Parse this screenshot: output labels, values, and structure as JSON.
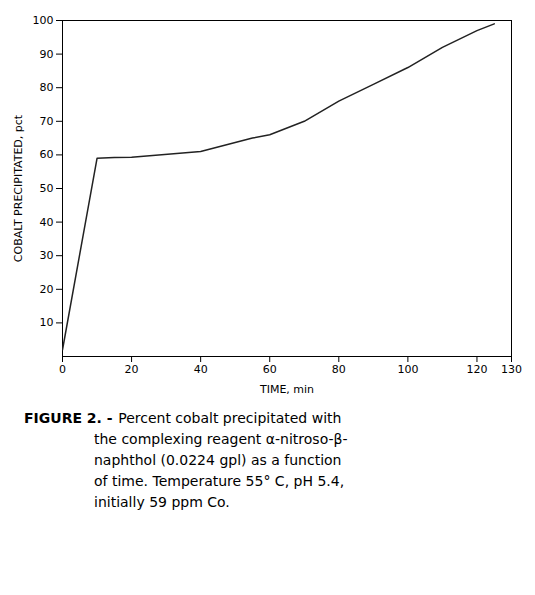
{
  "chart_data": {
    "type": "line",
    "x": [
      0,
      10,
      15,
      20,
      40,
      55,
      60,
      70,
      80,
      90,
      100,
      110,
      120,
      125
    ],
    "values": [
      2,
      59,
      59.2,
      59.3,
      61,
      65,
      66,
      70,
      76,
      81,
      86,
      92,
      97,
      99
    ],
    "color": "#222222",
    "xlim": [
      0,
      130
    ],
    "ylim": [
      0,
      100
    ],
    "xticks": [
      0,
      20,
      40,
      60,
      80,
      100,
      120,
      130
    ],
    "yticks": [
      10,
      20,
      30,
      40,
      50,
      60,
      70,
      80,
      90,
      100
    ],
    "xlabel": "TIME, min",
    "ylabel": "COBALT PRECIPITATED, pct",
    "caption_label": "FIGURE 2. -",
    "caption": [
      "Percent cobalt precipitated with",
      "the complexing reagent α-nitroso-β-",
      "naphthol (0.0224 gpl)  as a function",
      "of time.  Temperature 55° C, pH 5.4,",
      "initially 59 ppm Co."
    ]
  }
}
